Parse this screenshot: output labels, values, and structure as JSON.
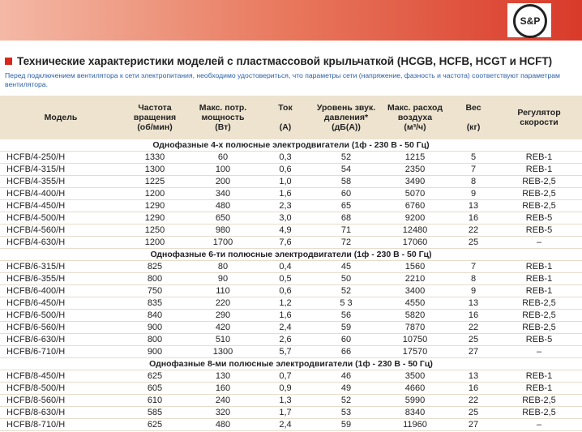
{
  "header": {
    "logo": "S&P",
    "title": "Технические характеристики моделей с пластмассовой крыльчаткой (HCGB, HCFB, HCGT и HCFT)",
    "note": "Перед подключением вентилятора к сети электропитания, необходимо удостовериться, что параметры сети (напряжение, фазность и частота) соответствуют параметрам вентилятора."
  },
  "table": {
    "columns": [
      [
        "Модель"
      ],
      [
        "Частота",
        "вращения",
        "(об/мин)"
      ],
      [
        "Макс. потр.",
        "мощность",
        "(Вт)"
      ],
      [
        "Ток",
        "",
        "(А)"
      ],
      [
        "Уровень звук.",
        "давления*",
        "(дБ(А))"
      ],
      [
        "Макс. расход",
        "воздуха",
        "(м³/ч)"
      ],
      [
        "Вес",
        "",
        "(кг)"
      ],
      [
        "Регулятор",
        "скорости"
      ]
    ],
    "groups": [
      {
        "title": "Однофазные 4-х полюсные электродвигатели (1ф - 230 В - 50 Гц)",
        "rows": [
          [
            "HCFB/4-250/H",
            "1330",
            "60",
            "0,3",
            "52",
            "1215",
            "5",
            "REB-1"
          ],
          [
            "HCFB/4-315/H",
            "1300",
            "100",
            "0,6",
            "54",
            "2350",
            "7",
            "REB-1"
          ],
          [
            "HCFB/4-355/H",
            "1225",
            "200",
            "1,0",
            "58",
            "3490",
            "8",
            "REB-2,5"
          ],
          [
            "HCFB/4-400/H",
            "1200",
            "340",
            "1,6",
            "60",
            "5070",
            "9",
            "REB-2,5"
          ],
          [
            "HCFB/4-450/H",
            "1290",
            "480",
            "2,3",
            "65",
            "6760",
            "13",
            "REB-2,5"
          ],
          [
            "HCFB/4-500/H",
            "1290",
            "650",
            "3,0",
            "68",
            "9200",
            "16",
            "REB-5"
          ],
          [
            "HCFB/4-560/H",
            "1250",
            "980",
            "4,9",
            "71",
            "12480",
            "22",
            "REB-5"
          ],
          [
            "HCFB/4-630/H",
            "1200",
            "1700",
            "7,6",
            "72",
            "17060",
            "25",
            "–"
          ]
        ]
      },
      {
        "title": "Однофазные 6-ти полюсные электродвигатели (1ф - 230 В - 50 Гц)",
        "rows": [
          [
            "HCFB/6-315/H",
            "825",
            "80",
            "0,4",
            "45",
            "1560",
            "7",
            "REB-1"
          ],
          [
            "HCFB/6-355/H",
            "800",
            "90",
            "0,5",
            "50",
            "2210",
            "8",
            "REB-1"
          ],
          [
            "HCFB/6-400/H",
            "750",
            "110",
            "0,6",
            "52",
            "3400",
            "9",
            "REB-1"
          ],
          [
            "HCFB/6-450/H",
            "835",
            "220",
            "1,2",
            "5 3",
            "4550",
            "13",
            "REB-2,5"
          ],
          [
            "HCFB/6-500/H",
            "840",
            "290",
            "1,6",
            "56",
            "5820",
            "16",
            "REB-2,5"
          ],
          [
            "HCFB/6-560/H",
            "900",
            "420",
            "2,4",
            "59",
            "7870",
            "22",
            "REB-2,5"
          ],
          [
            "HCFB/6-630/H",
            "800",
            "510",
            "2,6",
            "60",
            "10750",
            "25",
            "REB-5"
          ],
          [
            "HCFB/6-710/H",
            "900",
            "1300",
            "5,7",
            "66",
            "17570",
            "27",
            "–"
          ]
        ]
      },
      {
        "title": "Однофазные 8-ми полюсные электродвигатели (1ф - 230 В - 50 Гц)",
        "rows": [
          [
            "HCFB/8-450/H",
            "625",
            "130",
            "0,7",
            "46",
            "3500",
            "13",
            "REB-1"
          ],
          [
            "HCFB/8-500/H",
            "605",
            "160",
            "0,9",
            "49",
            "4660",
            "16",
            "REB-1"
          ],
          [
            "HCFB/8-560/H",
            "610",
            "240",
            "1,3",
            "52",
            "5990",
            "22",
            "REB-2,5"
          ],
          [
            "HCFB/8-630/H",
            "585",
            "320",
            "1,7",
            "53",
            "8340",
            "25",
            "REB-2,5"
          ],
          [
            "HCFB/8-710/H",
            "625",
            "480",
            "2,4",
            "59",
            "11960",
            "27",
            "–"
          ]
        ]
      }
    ]
  }
}
